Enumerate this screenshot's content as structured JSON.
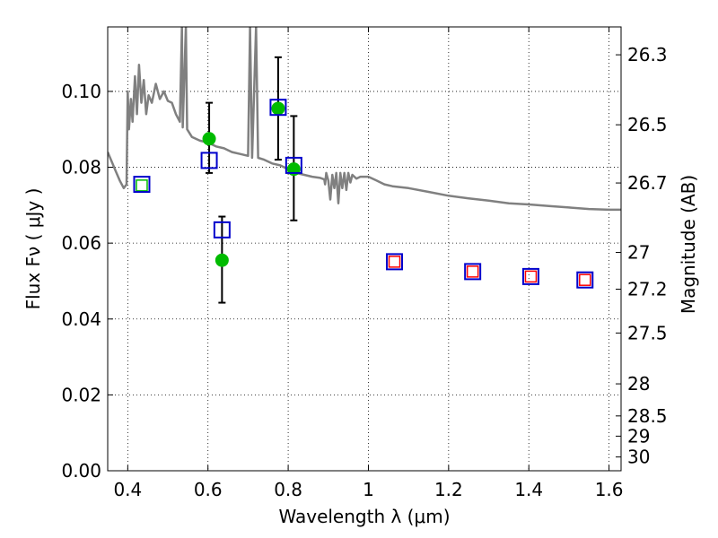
{
  "chart_data": {
    "type": "scatter",
    "xlabel": "Wavelength  λ (μm)",
    "ylabel": "Flux  Fν  ( μJy )",
    "ylabel_right": "Magnitude (AB)",
    "xlim": [
      0.35,
      1.63
    ],
    "ylim": [
      0.0,
      0.117
    ],
    "grid": true,
    "x_ticks": [
      0.4,
      0.6,
      0.8,
      1.0,
      1.2,
      1.4,
      1.6
    ],
    "x_tick_labels": [
      "0.4",
      "0.6",
      "0.8",
      "1",
      "1.2",
      "1.4",
      "1.6"
    ],
    "y_ticks": [
      0.0,
      0.02,
      0.04,
      0.06,
      0.08,
      0.1
    ],
    "y_tick_labels": [
      "0.00",
      "0.02",
      "0.04",
      "0.06",
      "0.08",
      "0.10"
    ],
    "right_axis_ticks": [
      {
        "label": "26.3",
        "mag": 26.3
      },
      {
        "label": "26.5",
        "mag": 26.5
      },
      {
        "label": "26.7",
        "mag": 26.7
      },
      {
        "label": "27",
        "mag": 27.0
      },
      {
        "label": "27.2",
        "mag": 27.2
      },
      {
        "label": "27.5",
        "mag": 27.5
      },
      {
        "label": "28",
        "mag": 28.0
      },
      {
        "label": "28.5",
        "mag": 28.5
      },
      {
        "label": "29",
        "mag": 29.0
      },
      {
        "label": "30",
        "mag": 30.0
      }
    ],
    "colors": {
      "model_line": "#808080",
      "observed": "#00bb00",
      "model_box": "#0000cc",
      "predicted_ir": "#ff0000",
      "error_bar": "#000000",
      "grid": "#000000"
    },
    "observed_points": [
      {
        "x": 0.603,
        "y": 0.0875,
        "yerr_low": 0.0785,
        "yerr_high": 0.097
      },
      {
        "x": 0.635,
        "y": 0.0555,
        "yerr_low": 0.0443,
        "yerr_high": 0.067
      },
      {
        "x": 0.775,
        "y": 0.0955,
        "yerr_low": 0.082,
        "yerr_high": 0.109
      },
      {
        "x": 0.814,
        "y": 0.0795,
        "yerr_low": 0.066,
        "yerr_high": 0.0935
      }
    ],
    "model_boxes": [
      {
        "x": 0.435,
        "y": 0.0755
      },
      {
        "x": 0.603,
        "y": 0.0818
      },
      {
        "x": 0.635,
        "y": 0.0635
      },
      {
        "x": 0.775,
        "y": 0.0958
      },
      {
        "x": 0.814,
        "y": 0.0805
      }
    ],
    "green_open_squares": [
      {
        "x": 0.435,
        "y": 0.0752
      }
    ],
    "predicted_boxes": [
      {
        "x": 1.065,
        "y": 0.0551
      },
      {
        "x": 1.26,
        "y": 0.0525
      },
      {
        "x": 1.405,
        "y": 0.0512
      },
      {
        "x": 1.54,
        "y": 0.0503
      }
    ],
    "model_spectrum": [
      [
        0.35,
        0.084
      ],
      [
        0.36,
        0.0815
      ],
      [
        0.37,
        0.079
      ],
      [
        0.38,
        0.0765
      ],
      [
        0.39,
        0.0745
      ],
      [
        0.397,
        0.0755
      ],
      [
        0.4,
        0.1
      ],
      [
        0.403,
        0.09
      ],
      [
        0.408,
        0.098
      ],
      [
        0.412,
        0.092
      ],
      [
        0.418,
        0.104
      ],
      [
        0.423,
        0.094
      ],
      [
        0.428,
        0.107
      ],
      [
        0.434,
        0.097
      ],
      [
        0.44,
        0.103
      ],
      [
        0.446,
        0.094
      ],
      [
        0.452,
        0.099
      ],
      [
        0.46,
        0.097
      ],
      [
        0.47,
        0.102
      ],
      [
        0.48,
        0.098
      ],
      [
        0.49,
        0.1
      ],
      [
        0.5,
        0.0975
      ],
      [
        0.51,
        0.097
      ],
      [
        0.52,
        0.094
      ],
      [
        0.53,
        0.092
      ],
      [
        0.535,
        0.117
      ],
      [
        0.537,
        0.0905
      ],
      [
        0.545,
        0.117
      ],
      [
        0.548,
        0.09
      ],
      [
        0.56,
        0.088
      ],
      [
        0.58,
        0.087
      ],
      [
        0.6,
        0.0865
      ],
      [
        0.62,
        0.0855
      ],
      [
        0.64,
        0.085
      ],
      [
        0.66,
        0.084
      ],
      [
        0.68,
        0.0835
      ],
      [
        0.7,
        0.083
      ],
      [
        0.705,
        0.117
      ],
      [
        0.71,
        0.0825
      ],
      [
        0.72,
        0.117
      ],
      [
        0.725,
        0.0825
      ],
      [
        0.74,
        0.082
      ],
      [
        0.76,
        0.081
      ],
      [
        0.78,
        0.0805
      ],
      [
        0.8,
        0.0795
      ],
      [
        0.82,
        0.0785
      ],
      [
        0.84,
        0.078
      ],
      [
        0.86,
        0.0775
      ],
      [
        0.88,
        0.0772
      ],
      [
        0.89,
        0.0768
      ],
      [
        0.892,
        0.0755
      ],
      [
        0.895,
        0.0785
      ],
      [
        0.9,
        0.0765
      ],
      [
        0.905,
        0.0715
      ],
      [
        0.91,
        0.078
      ],
      [
        0.915,
        0.0745
      ],
      [
        0.92,
        0.0785
      ],
      [
        0.925,
        0.0705
      ],
      [
        0.93,
        0.0785
      ],
      [
        0.935,
        0.0745
      ],
      [
        0.94,
        0.0785
      ],
      [
        0.945,
        0.074
      ],
      [
        0.95,
        0.0785
      ],
      [
        0.955,
        0.076
      ],
      [
        0.96,
        0.078
      ],
      [
        0.97,
        0.077
      ],
      [
        0.98,
        0.0775
      ],
      [
        1.0,
        0.0775
      ],
      [
        1.02,
        0.0765
      ],
      [
        1.04,
        0.0755
      ],
      [
        1.06,
        0.075
      ],
      [
        1.1,
        0.0745
      ],
      [
        1.15,
        0.0735
      ],
      [
        1.2,
        0.0725
      ],
      [
        1.25,
        0.0718
      ],
      [
        1.3,
        0.0712
      ],
      [
        1.35,
        0.0705
      ],
      [
        1.4,
        0.0702
      ],
      [
        1.45,
        0.0698
      ],
      [
        1.5,
        0.0694
      ],
      [
        1.55,
        0.069
      ],
      [
        1.6,
        0.0688
      ],
      [
        1.63,
        0.0688
      ]
    ]
  }
}
